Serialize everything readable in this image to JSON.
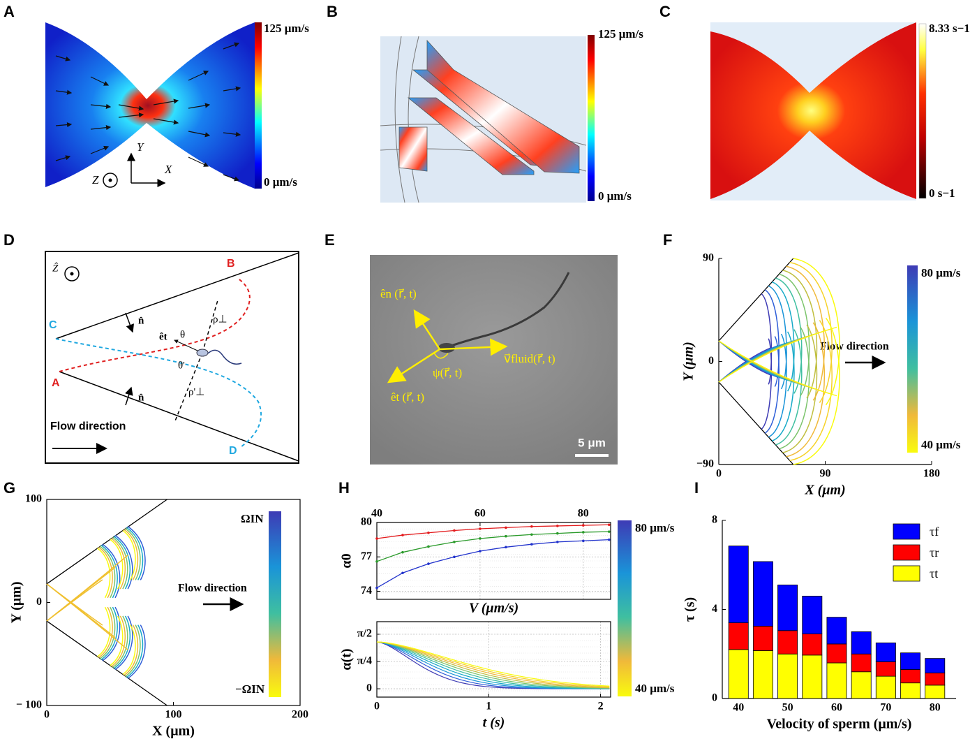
{
  "panel_labels": [
    "A",
    "B",
    "C",
    "D",
    "E",
    "F",
    "G",
    "H",
    "I"
  ],
  "panels": {
    "A": {
      "colorbar_max": "125 μm/s",
      "colorbar_min": "0 μm/s",
      "axis_y": "Y",
      "axis_x": "X",
      "axis_z": "Z"
    },
    "B": {
      "colorbar_max": "125 μm/s",
      "colorbar_min": "0 μm/s"
    },
    "C": {
      "colorbar_max": "8.33 s−1",
      "colorbar_min": "0 s−1"
    },
    "D": {
      "z_axis": "Ẑ",
      "point_a": "A",
      "point_b": "B",
      "point_c": "C",
      "point_d": "D",
      "normal_upper": "n̂",
      "normal_lower": "n̂",
      "tangent": "êt",
      "theta": "θ",
      "theta_prime": "θ'",
      "rho_perp": "ρ⊥",
      "rho_perp_prime": "ρ'⊥",
      "flow": "Flow direction"
    },
    "E": {
      "e_n": "ên (r⃗, t)",
      "v_fluid": "v⃗fluid(r⃗, t)",
      "psi": "ψ(r⃗, t)",
      "e_t": "êt (r⃗, t)",
      "scale_bar": "5 μm"
    }
  },
  "chart_data": [
    {
      "type": "curves",
      "xlim": [
        0,
        180
      ],
      "ylim": [
        -90,
        90
      ],
      "xticks": [
        0,
        90,
        180
      ],
      "yticks": [
        {
          "value": -90,
          "label": "−90"
        },
        0,
        90
      ],
      "xlabel": "X (μm)",
      "ylabel": "Y (μm)",
      "frame": "axes",
      "colorbar": {
        "max": "80 μm/s",
        "min": "40 μm/s"
      },
      "annotation": "Flow direction"
    },
    {
      "type": "curves",
      "xlim": [
        0,
        200
      ],
      "ylim": [
        -100,
        100
      ],
      "xticks": [
        0,
        100,
        200
      ],
      "yticks": [
        {
          "value": -100,
          "label": "− 100"
        },
        0,
        100
      ],
      "xlabel": "X (μm)",
      "ylabel": "Y (μm)",
      "frame": "box",
      "colorbar": {
        "max": "ΩIN",
        "min": "−ΩIN"
      },
      "annotation": "Flow direction"
    },
    {
      "type": "line",
      "x": [
        40,
        45,
        50,
        55,
        60,
        65,
        70,
        75,
        80,
        85
      ],
      "xlim": [
        40,
        85.3
      ],
      "ylim": [
        73.3,
        80
      ],
      "xticks": [
        40,
        60,
        80
      ],
      "yticks": [
        74,
        77,
        80
      ],
      "xtick_position": "top",
      "xlabel": "V (μm/s)",
      "ylabel": "α0",
      "frame": "box",
      "grid": true,
      "series": [
        {
          "color": "#e31a1c",
          "values": [
            78.6,
            78.9,
            79.1,
            79.3,
            79.45,
            79.55,
            79.65,
            79.7,
            79.75,
            79.8
          ]
        },
        {
          "color": "#2a9a2a",
          "values": [
            76.6,
            77.4,
            77.9,
            78.3,
            78.6,
            78.8,
            78.95,
            79.05,
            79.15,
            79.2
          ]
        },
        {
          "color": "#2233cc",
          "values": [
            74.3,
            75.6,
            76.4,
            77.0,
            77.5,
            77.85,
            78.1,
            78.3,
            78.4,
            78.5
          ]
        }
      ],
      "colorbar": {
        "max": "80 μm/s",
        "min": "40 μm/s"
      }
    },
    {
      "type": "curves",
      "xlim": [
        0,
        2.09
      ],
      "ylim": [
        -0.24,
        1.933
      ],
      "xticks": [
        0,
        1,
        2
      ],
      "yticks": [
        0,
        {
          "value": 0.7854,
          "label": "π/4"
        },
        {
          "value": 1.5708,
          "label": "π/2"
        }
      ],
      "xlabel": "t (s)",
      "ylabel": "α(t)",
      "frame": "box",
      "grid": true
    },
    {
      "type": "bar",
      "stacked": true,
      "x": [
        40,
        45,
        50,
        55,
        60,
        65,
        70,
        75,
        80
      ],
      "xlim": [
        36.7,
        84.3
      ],
      "ylim": [
        0,
        8
      ],
      "xticks": [
        40,
        50,
        60,
        70,
        80
      ],
      "yticks": [
        0,
        4,
        8
      ],
      "xlabel": "Velocity of sperm (μm/s)",
      "ylabel": "τ (s)",
      "frame": "axes",
      "legend": "upper right",
      "series": [
        {
          "name": "τt",
          "color": "#ffff00",
          "values": [
            2.2,
            2.15,
            2.0,
            1.95,
            1.6,
            1.2,
            1.0,
            0.7,
            0.6
          ]
        },
        {
          "name": "τr",
          "color": "#ff0000",
          "values": [
            1.2,
            1.1,
            1.05,
            0.95,
            0.85,
            0.8,
            0.65,
            0.6,
            0.55
          ]
        },
        {
          "name": "τf",
          "color": "#0000ff",
          "values": [
            3.45,
            2.9,
            2.05,
            1.7,
            1.2,
            1.0,
            0.85,
            0.75,
            0.65
          ]
        }
      ]
    }
  ]
}
